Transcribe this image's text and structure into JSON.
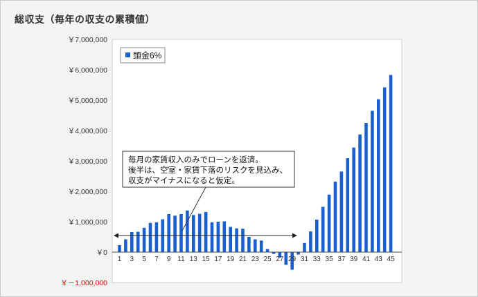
{
  "title": "総収支（毎年の収支の累積値）",
  "colors": {
    "bar": "#1a5fd0",
    "negative_label": "#e00000",
    "plot_border": "#cccccc"
  },
  "chart_data": {
    "type": "bar",
    "ylim": [
      -1000000,
      7000000
    ],
    "y_ticks": [
      -1000000,
      0,
      1000000,
      2000000,
      3000000,
      4000000,
      5000000,
      6000000,
      7000000
    ],
    "y_tick_labels": [
      "￥－1,000,000",
      "￥0",
      "￥1,000,000",
      "￥2,000,000",
      "￥3,000,000",
      "￥4,000,000",
      "￥5,000,000",
      "￥6,000,000",
      "￥7,000,000"
    ],
    "x_tick_labels": [
      "1",
      "3",
      "5",
      "7",
      "9",
      "11",
      "13",
      "15",
      "17",
      "19",
      "21",
      "23",
      "25",
      "27",
      "29",
      "31",
      "33",
      "35",
      "37",
      "39",
      "41",
      "43",
      "45"
    ],
    "categories": [
      1,
      2,
      3,
      4,
      5,
      6,
      7,
      8,
      9,
      10,
      11,
      12,
      13,
      14,
      15,
      16,
      17,
      18,
      19,
      20,
      21,
      22,
      23,
      24,
      25,
      26,
      27,
      28,
      29,
      30,
      31,
      32,
      33,
      34,
      35,
      36,
      37,
      38,
      39,
      40,
      41,
      42,
      43,
      44,
      45
    ],
    "grid": false,
    "legend_position": "top-left",
    "series": [
      {
        "name": "頭金6%",
        "values": [
          230000,
          420000,
          660000,
          670000,
          800000,
          960000,
          980000,
          1080000,
          1250000,
          1200000,
          1250000,
          1370000,
          1220000,
          1260000,
          1320000,
          980000,
          1000000,
          1010000,
          830000,
          780000,
          770000,
          500000,
          420000,
          380000,
          100000,
          -60000,
          -180000,
          -420000,
          -580000,
          -80000,
          300000,
          680000,
          1070000,
          1490000,
          1890000,
          2320000,
          2650000,
          3090000,
          3440000,
          3870000,
          4250000,
          4650000,
          5030000,
          5420000,
          5830000
        ]
      }
    ],
    "annotations": [
      {
        "text": "毎月の家賃収入のみでローンを返済。"
      },
      {
        "text": "後半は、空室・家賃下落のリスクを見込み、"
      },
      {
        "text": "収支がマイナスになると仮定。"
      }
    ]
  }
}
